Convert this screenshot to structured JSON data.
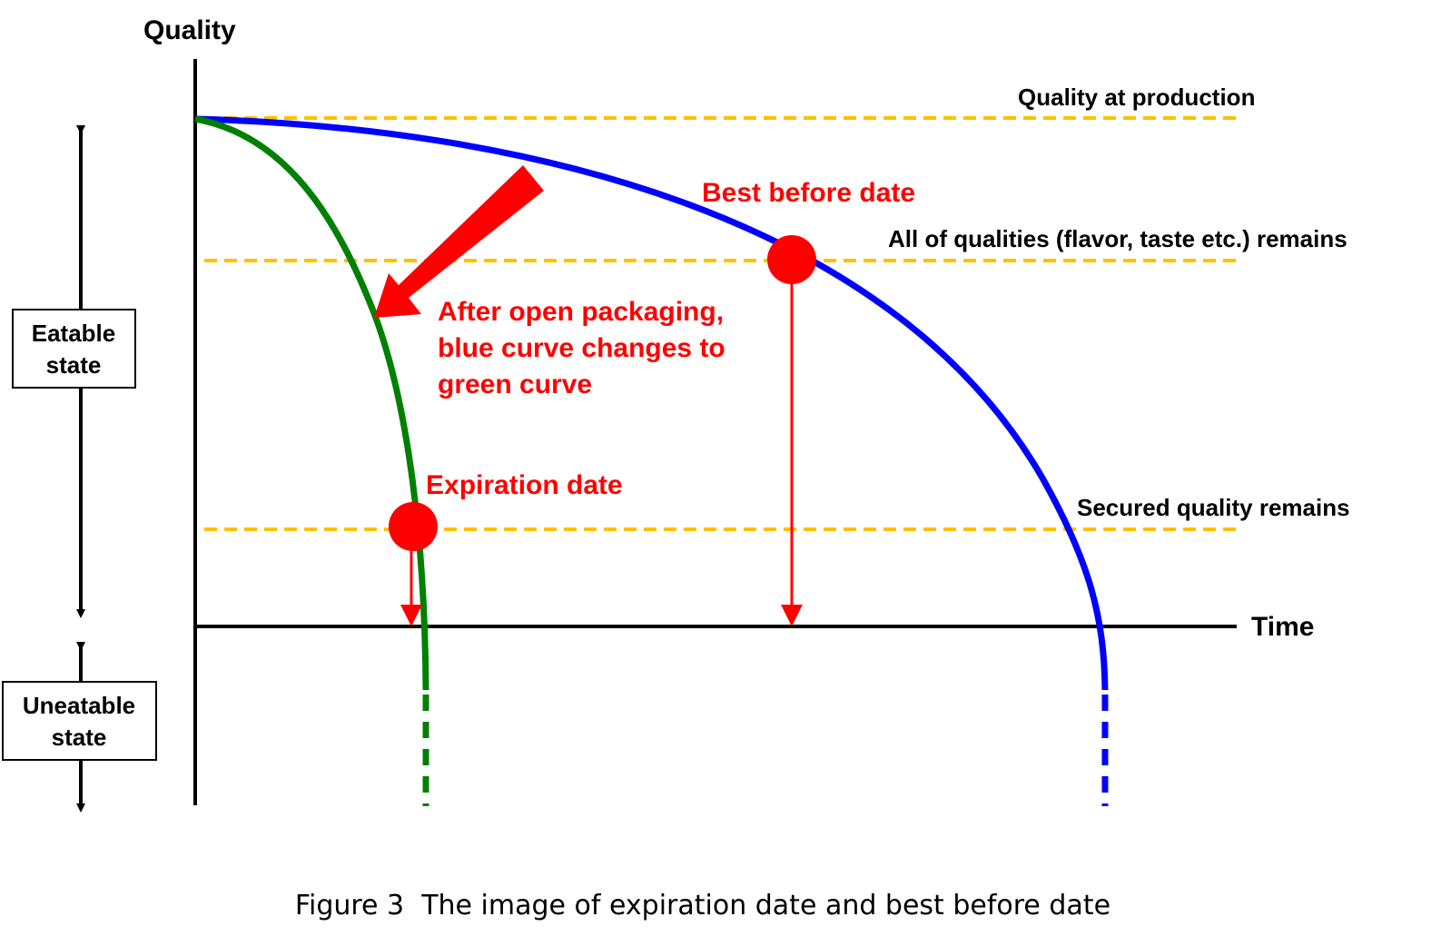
{
  "axes": {
    "y_label": "Quality",
    "x_label": "Time"
  },
  "reference_lines": {
    "production": "Quality at production",
    "all_qualities": "All of qualities (flavor, taste etc.) remains",
    "secured": "Secured quality remains"
  },
  "markers": {
    "best_before": "Best before date",
    "expiration": "Expiration date"
  },
  "annotation": {
    "line1": "After open packaging,",
    "line2": "blue curve changes to",
    "line3": "green curve"
  },
  "states": {
    "eatable_line1": "Eatable",
    "eatable_line2": "state",
    "uneatable_line1": "Uneatable",
    "uneatable_line2": "state"
  },
  "caption": "Figure 3  The image of expiration date and best before date",
  "colors": {
    "unopened_curve": "#0000ff",
    "opened_curve": "#008000",
    "reference_line": "#ffc000",
    "highlight": "#ff0000",
    "axis": "#000000"
  }
}
